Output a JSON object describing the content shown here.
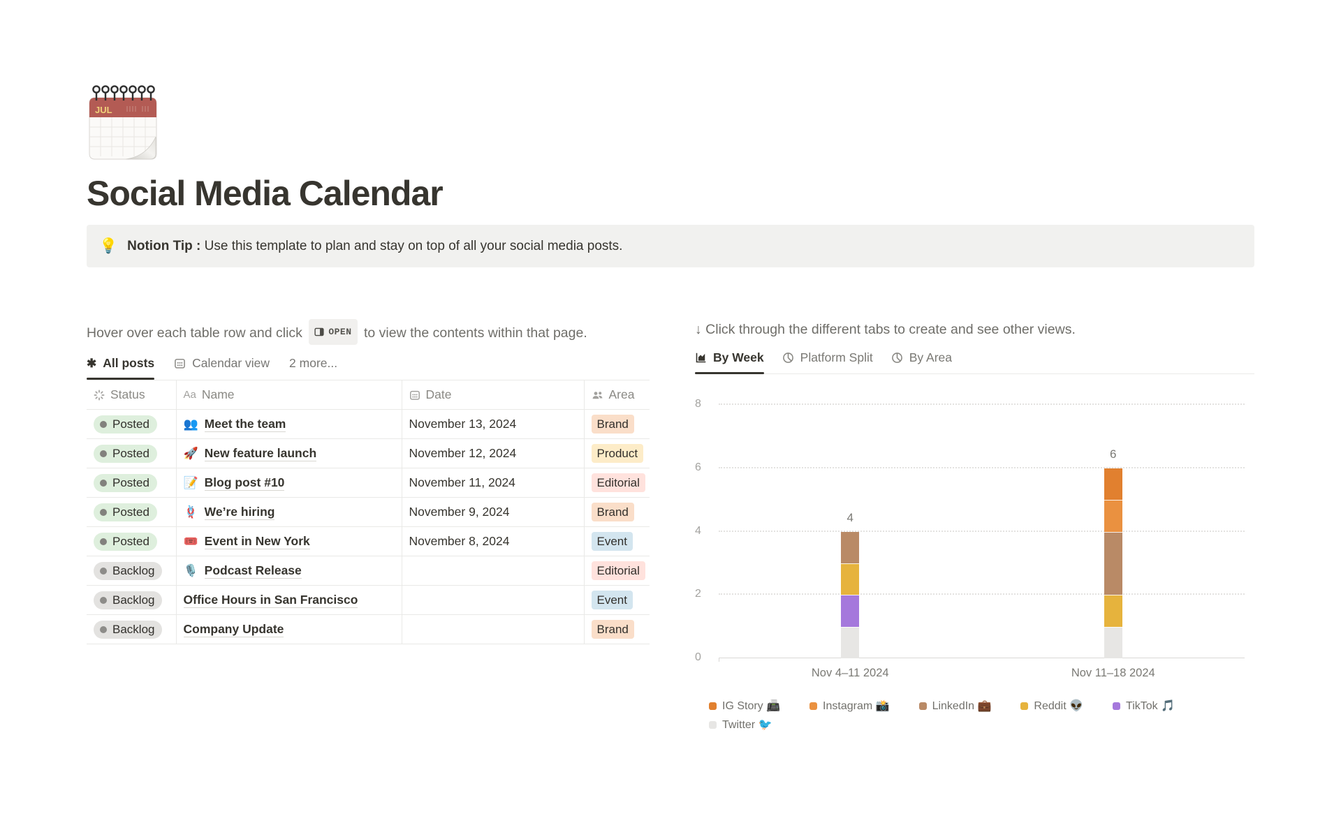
{
  "page": {
    "title": "Social Media Calendar",
    "icon": "spiral-calendar",
    "icon_month": "JUL"
  },
  "callout": {
    "emoji": "💡",
    "title": "Notion Tip :",
    "body": "Use this template to plan and stay on top of all your social media posts."
  },
  "left_panel": {
    "instruction": {
      "before": "Hover over each table row and click",
      "chip": "OPEN",
      "after": "to view the contents within that page."
    },
    "view_tabs": [
      {
        "label": "All posts",
        "icon": "asterisk-icon",
        "active": true
      },
      {
        "label": "Calendar view",
        "icon": "calendar-icon",
        "active": false
      },
      {
        "label": "2 more...",
        "icon": null,
        "active": false
      }
    ],
    "table": {
      "columns": [
        {
          "label": "Status",
          "icon": "status-icon"
        },
        {
          "label": "Name",
          "icon": "aa-icon"
        },
        {
          "label": "Date",
          "icon": "calendar-icon"
        },
        {
          "label": "Area",
          "icon": "people-icon"
        }
      ],
      "rows": [
        {
          "status": "Posted",
          "icon": "👥",
          "name": "Meet the team",
          "date": "November 13, 2024",
          "area": "Brand"
        },
        {
          "status": "Posted",
          "icon": "🚀",
          "name": "New feature launch",
          "date": "November 12, 2024",
          "area": "Product"
        },
        {
          "status": "Posted",
          "icon": "📝",
          "name": "Blog post #10",
          "date": "November 11, 2024",
          "area": "Editorial"
        },
        {
          "status": "Posted",
          "icon": "🪢",
          "name": "We’re hiring",
          "date": "November 9, 2024",
          "area": "Brand"
        },
        {
          "status": "Posted",
          "icon": "🎟️",
          "name": "Event in New York",
          "date": "November 8, 2024",
          "area": "Event"
        },
        {
          "status": "Backlog",
          "icon": "🎙️",
          "name": "Podcast Release",
          "date": "",
          "area": "Editorial"
        },
        {
          "status": "Backlog",
          "icon": "",
          "name": "Office Hours in San Francisco",
          "date": "",
          "area": "Event"
        },
        {
          "status": "Backlog",
          "icon": "",
          "name": "Company Update",
          "date": "",
          "area": "Brand"
        }
      ]
    }
  },
  "right_panel": {
    "instruction": "↓ Click through the different tabs to create and see other views.",
    "chart_tabs": [
      {
        "label": "By Week",
        "icon": "bar-chart-icon",
        "active": true
      },
      {
        "label": "Platform Split",
        "icon": "pie-chart-icon",
        "active": false
      },
      {
        "label": "By Area",
        "icon": "pie-chart-icon",
        "active": false
      }
    ]
  },
  "chart_data": {
    "type": "bar",
    "stacked": true,
    "title": "",
    "xlabel": "",
    "ylabel": "",
    "categories": [
      "Nov 4–11 2024",
      "Nov 11–18 2024"
    ],
    "series": [
      {
        "name": "IG Story",
        "emoji": "📠",
        "color": "#E1802F",
        "values": [
          0,
          1
        ]
      },
      {
        "name": "Instagram",
        "emoji": "📸",
        "color": "#EA9140",
        "values": [
          0,
          1
        ]
      },
      {
        "name": "LinkedIn",
        "emoji": "💼",
        "color": "#B98A66",
        "values": [
          1,
          2
        ]
      },
      {
        "name": "Reddit",
        "emoji": "👽",
        "color": "#E6B33D",
        "values": [
          1,
          1
        ]
      },
      {
        "name": "TikTok",
        "emoji": "🎵",
        "color": "#A578DC",
        "values": [
          1,
          0
        ]
      },
      {
        "name": "Twitter",
        "emoji": "🐦",
        "color": "#E7E6E4",
        "values": [
          1,
          1
        ]
      }
    ],
    "totals": [
      4,
      6
    ],
    "y_ticks": [
      0,
      2,
      4,
      6,
      8
    ],
    "ylim": [
      0,
      8
    ],
    "grid": "dotted-horizontal",
    "legend_position": "bottom"
  },
  "colors": {
    "status": {
      "Posted": {
        "bg": "#DEEFDD",
        "dot": "#82817D"
      },
      "Backlog": {
        "bg": "#E3E2E0",
        "dot": "#8D8C89"
      }
    },
    "area": {
      "Brand": "#FADEC9",
      "Product": "#FDECC8",
      "Editorial": "#FFE2DD",
      "Event": "#D3E5EF"
    },
    "text_dark": "#37352F",
    "text_gray": "#787774",
    "border": "#E9E9E7"
  }
}
